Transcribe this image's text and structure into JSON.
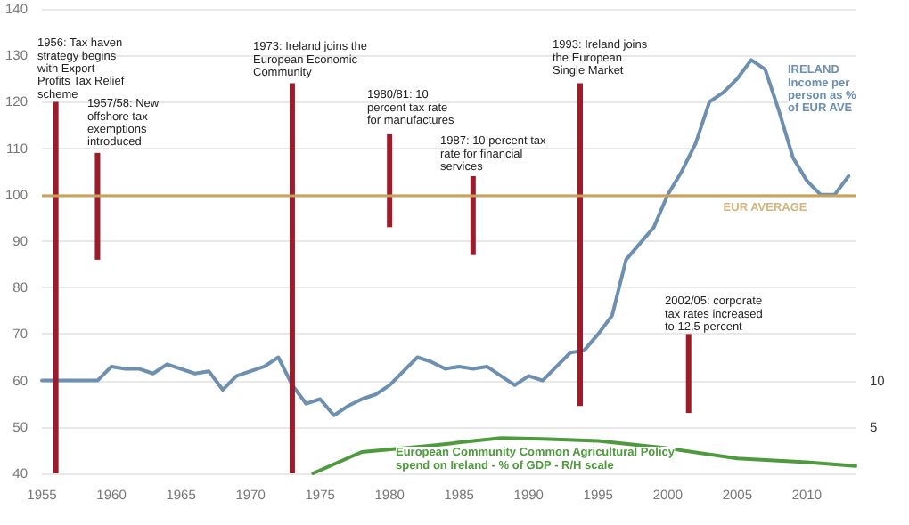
{
  "chart_data": {
    "type": "line",
    "xlim": [
      1955,
      2013.5
    ],
    "xticks": [
      1955,
      1960,
      1965,
      1970,
      1975,
      1980,
      1985,
      1990,
      1995,
      2000,
      2005,
      2010
    ],
    "ylim": [
      40,
      140
    ],
    "yticks": [
      40,
      50,
      60,
      70,
      80,
      90,
      100,
      110,
      120,
      130,
      140
    ],
    "y2lim": [
      0,
      50
    ],
    "y2ticks": [
      {
        "value": 5,
        "label": "5"
      },
      {
        "value": 10,
        "label": "10"
      }
    ],
    "grid": "y",
    "legend": false,
    "marker": "none",
    "series": [
      {
        "name": "IRELAND\nIncome per\nperson as %\nof EUR AVE",
        "color": "#6d8fb0",
        "x": [
          1955,
          1956,
          1957,
          1958,
          1959,
          1960,
          1961,
          1962,
          1963,
          1964,
          1965,
          1966,
          1967,
          1968,
          1969,
          1970,
          1971,
          1972,
          1973,
          1974,
          1975,
          1976,
          1977,
          1978,
          1979,
          1980,
          1981,
          1982,
          1983,
          1984,
          1985,
          1986,
          1987,
          1988,
          1989,
          1990,
          1991,
          1992,
          1993,
          1994,
          1995,
          1996,
          1997,
          1998,
          1999,
          2000,
          2001,
          2002,
          2003,
          2004,
          2005,
          2006,
          2007,
          2008,
          2009,
          2010,
          2011,
          2012,
          2013
        ],
        "values": [
          60,
          60,
          60,
          60,
          60,
          63,
          62.5,
          62.5,
          61.5,
          63.5,
          62.5,
          61.5,
          62,
          58,
          61,
          62,
          63,
          65,
          59,
          55,
          56,
          52.5,
          54.5,
          56,
          57,
          59,
          62,
          65,
          64,
          62.5,
          63,
          62.5,
          63,
          61,
          59,
          61,
          60,
          63,
          66,
          66.5,
          70,
          74,
          86,
          89.5,
          93,
          100,
          105,
          111,
          120,
          122,
          125,
          129,
          127,
          118,
          108,
          103,
          100,
          100,
          104
        ]
      },
      {
        "name": "European Community Common Agricultural Policy\nspend on Ireland - % of GDP - R/H scale",
        "color": "#4f9a3f",
        "axis": "y2",
        "x": [
          1974.5,
          1978,
          1983,
          1988,
          1991,
          1995,
          2000,
          2005,
          2010,
          2013.5
        ],
        "values": [
          0,
          2.3,
          3,
          3.8,
          3.7,
          3.5,
          2.7,
          1.6,
          1.2,
          0.8
        ]
      },
      {
        "type": "bar",
        "color": "#9b1c2a",
        "x": [
          1956,
          1959,
          1973,
          1980,
          1986,
          1993.7,
          2001.5
        ],
        "base": [
          40,
          86,
          40,
          93,
          87,
          54.5,
          53
        ],
        "values": [
          80,
          23,
          84,
          20,
          17,
          69.5,
          17
        ]
      }
    ],
    "ref_lines": [
      {
        "axis": "y",
        "value": 100,
        "label": "EUR AVERAGE",
        "color": "#c9a25a"
      }
    ],
    "annotations": [
      "1956: Tax haven\nstrategy begins\nwith Export\nProfits Tax Relief\nscheme",
      "1957/58: New\noffshore tax\nexemptions\nintroduced",
      "1973: Ireland joins the\nEuropean Economic\nCommunity",
      "1980/81: 10\npercent tax rate\nfor manufactures",
      "1987: 10 percent tax\nrate for financial\nservices",
      "1993: Ireland joins\nthe European\nSingle Market",
      "2002/05: corporate\ntax rates increased\nto 12.5 percent"
    ]
  }
}
